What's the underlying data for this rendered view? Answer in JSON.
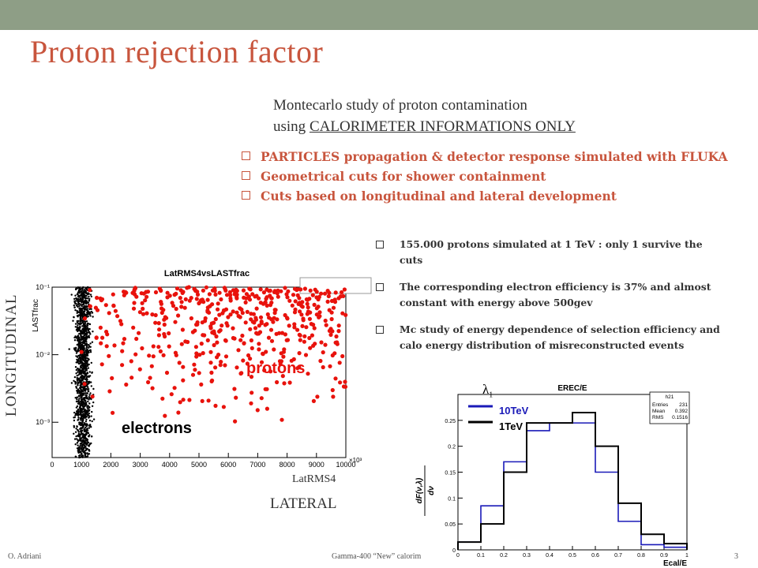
{
  "slide": {
    "title": "Proton  rejection factor",
    "intro_line1": "Montecarlo study of proton contamination",
    "intro_line2_prefix": "using ",
    "intro_line2_underlined": "CALORIMETER  INFORMATIONS ONLY",
    "bullets_main": [
      "PARTICLES propagation & detector response simulated with FLUKA",
      "Geometrical cuts  for  shower containment",
      "Cuts based on longitudinal and lateral development"
    ],
    "bullets_detail": [
      "155.000 protons   simulated at 1 TeV   : only 1 survive the cuts",
      "The corresponding electron efficiency is 37%  and almost constant with energy above 500gev",
      "Mc study  of energy dependence of  selection efficiency and  calo energy  distribution of misreconstructed events"
    ],
    "longitudinal_label": "LONGITUDINAL",
    "lateral_label": "LATERAL",
    "latrms_label": "LatRMS4",
    "lambda_symbol": "λ",
    "lambda_sub": "1",
    "footer_left": "O. Adriani",
    "footer_center": "Gamma-400 “New” calorim",
    "footer_right": "3"
  },
  "chart_data": [
    {
      "type": "scatter",
      "title": "LatRMS4vsLASTfrac",
      "xlabel": "",
      "ylabel": "LASTfrac",
      "x_ticks": [
        "0",
        "1000",
        "2000",
        "3000",
        "4000",
        "5000",
        "6000",
        "7000",
        "8000",
        "9000",
        "10000"
      ],
      "x_exponent_label": "×10³",
      "y_ticks": [
        "10⁻³",
        "10⁻²",
        "10⁻¹"
      ],
      "y_scale": "log",
      "xlim": [
        0,
        10000
      ],
      "ylim": [
        0.0003,
        0.1
      ],
      "series": [
        {
          "name": "electrons",
          "color": "#000000",
          "x_range": [
            500,
            1600
          ],
          "y_range": [
            0.0003,
            0.1
          ]
        },
        {
          "name": "protons",
          "color": "#e8120c",
          "x_range": [
            700,
            10000
          ],
          "y_range": [
            0.0006,
            0.1
          ]
        }
      ],
      "annotations": [
        "protons",
        "electrons"
      ]
    },
    {
      "type": "bar",
      "title": "EREC/E",
      "xlabel": "Ecal/E",
      "ylabel": "dF(ν,λ)/dν",
      "stats_box": {
        "name": "h21",
        "rows": [
          [
            "Entries",
            "231"
          ],
          [
            "Mean",
            "0.392"
          ],
          [
            "RMS",
            "0.1516"
          ]
        ]
      },
      "xlim": [
        0,
        1.0
      ],
      "ylim": [
        0,
        0.3
      ],
      "x_ticks": [
        "0",
        "0.1",
        "0.2",
        "0.3",
        "0.4",
        "0.5",
        "0.6",
        "0.7",
        "0.8",
        "0.9",
        "1"
      ],
      "y_ticks": [
        "0",
        "0.05",
        "0.1",
        "0.15",
        "0.2",
        "0.25"
      ],
      "bin_edges": [
        0,
        0.1,
        0.2,
        0.3,
        0.4,
        0.5,
        0.6,
        0.7,
        0.8,
        0.9,
        1.0
      ],
      "series": [
        {
          "name": "10TeV",
          "color": "#1a1ab8",
          "values": [
            0.015,
            0.085,
            0.17,
            0.23,
            0.245,
            0.245,
            0.15,
            0.055,
            0.01,
            0.005
          ]
        },
        {
          "name": "1TeV",
          "color": "#000000",
          "values": [
            0.015,
            0.05,
            0.15,
            0.245,
            0.245,
            0.265,
            0.2,
            0.09,
            0.03,
            0.012
          ]
        }
      ]
    }
  ]
}
